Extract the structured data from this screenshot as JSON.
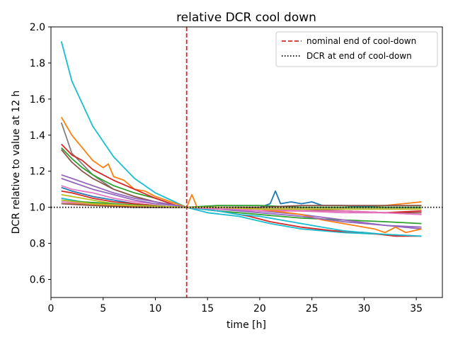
{
  "chart_data": {
    "type": "line",
    "title": "relative DCR cool down",
    "xlabel": "time [h]",
    "ylabel": "DCR relative to value at 12 h",
    "xlim": [
      0,
      37.5
    ],
    "ylim": [
      0.5,
      2.0
    ],
    "xticks": [
      0,
      5,
      10,
      15,
      20,
      25,
      30,
      35
    ],
    "yticks": [
      0.6,
      0.8,
      1.0,
      1.2,
      1.4,
      1.6,
      1.8,
      2.0
    ],
    "xtick_labels": [
      "0",
      "5",
      "10",
      "15",
      "20",
      "25",
      "30",
      "35"
    ],
    "ytick_labels": [
      "0.6",
      "0.8",
      "1.0",
      "1.2",
      "1.4",
      "1.6",
      "1.8",
      "2.0"
    ],
    "grid": false,
    "legend_position": "top-right",
    "reference_lines": [
      {
        "name": "nominal end of cool-down",
        "orientation": "vertical",
        "value": 13.0,
        "color": "#d62728",
        "style": "dashed"
      },
      {
        "name": "DCR at end of cool-down",
        "orientation": "horizontal",
        "value": 1.0,
        "color": "#000000",
        "style": "dotted"
      }
    ],
    "series": [
      {
        "name": "s1",
        "color": "#17becf",
        "points": [
          [
            1,
            1.92
          ],
          [
            2,
            1.7
          ],
          [
            4,
            1.45
          ],
          [
            6,
            1.28
          ],
          [
            8,
            1.16
          ],
          [
            10,
            1.08
          ],
          [
            11.5,
            1.04
          ],
          [
            13,
            1.0
          ],
          [
            15,
            0.97
          ],
          [
            18,
            0.95
          ],
          [
            21,
            0.91
          ],
          [
            24,
            0.88
          ],
          [
            28,
            0.86
          ],
          [
            32,
            0.85
          ],
          [
            35.5,
            0.84
          ]
        ]
      },
      {
        "name": "s2",
        "color": "#ff7f0e",
        "points": [
          [
            1,
            1.5
          ],
          [
            2,
            1.4
          ],
          [
            3,
            1.33
          ],
          [
            4,
            1.26
          ],
          [
            5,
            1.22
          ],
          [
            5.5,
            1.24
          ],
          [
            6,
            1.17
          ],
          [
            7,
            1.15
          ],
          [
            8,
            1.1
          ],
          [
            9,
            1.09
          ],
          [
            10,
            1.06
          ],
          [
            11,
            1.04
          ],
          [
            12,
            1.02
          ],
          [
            13,
            1.0
          ],
          [
            13.5,
            1.07
          ],
          [
            14,
            1.0
          ],
          [
            16,
            1.0
          ],
          [
            20,
            1.0
          ],
          [
            24,
            1.0
          ],
          [
            28,
            1.0
          ],
          [
            32,
            1.01
          ],
          [
            35.5,
            1.03
          ]
        ]
      },
      {
        "name": "s3",
        "color": "#7f7f7f",
        "points": [
          [
            1,
            1.47
          ],
          [
            2,
            1.3
          ],
          [
            4,
            1.18
          ],
          [
            6,
            1.1
          ],
          [
            8,
            1.06
          ],
          [
            10,
            1.03
          ],
          [
            12,
            1.01
          ],
          [
            13,
            1.0
          ],
          [
            16,
            0.99
          ],
          [
            20,
            0.99
          ],
          [
            24,
            0.99
          ],
          [
            28,
            0.99
          ],
          [
            32,
            0.99
          ],
          [
            35.5,
            0.99
          ]
        ]
      },
      {
        "name": "s4",
        "color": "#2ca02c",
        "points": [
          [
            1,
            1.33
          ],
          [
            2,
            1.27
          ],
          [
            3,
            1.22
          ],
          [
            4,
            1.18
          ],
          [
            5,
            1.15
          ],
          [
            6,
            1.12
          ],
          [
            8,
            1.08
          ],
          [
            10,
            1.05
          ],
          [
            12,
            1.01
          ],
          [
            13,
            1.0
          ],
          [
            16,
            0.98
          ],
          [
            20,
            0.96
          ],
          [
            24,
            0.94
          ],
          [
            28,
            0.93
          ],
          [
            32,
            0.92
          ],
          [
            35.5,
            0.91
          ]
        ]
      },
      {
        "name": "s5",
        "color": "#d62728",
        "points": [
          [
            1,
            1.35
          ],
          [
            2,
            1.29
          ],
          [
            3,
            1.26
          ],
          [
            4,
            1.21
          ],
          [
            6,
            1.15
          ],
          [
            8,
            1.1
          ],
          [
            10,
            1.05
          ],
          [
            12,
            1.01
          ],
          [
            13,
            1.0
          ],
          [
            16,
            0.98
          ],
          [
            19,
            0.95
          ],
          [
            21,
            0.92
          ],
          [
            24,
            0.89
          ],
          [
            27,
            0.87
          ],
          [
            30,
            0.86
          ],
          [
            33,
            0.84
          ],
          [
            35.5,
            0.84
          ]
        ]
      },
      {
        "name": "s6",
        "color": "#8c564b",
        "points": [
          [
            1,
            1.32
          ],
          [
            2,
            1.25
          ],
          [
            3,
            1.2
          ],
          [
            4,
            1.16
          ],
          [
            6,
            1.1
          ],
          [
            8,
            1.06
          ],
          [
            10,
            1.03
          ],
          [
            12,
            1.01
          ],
          [
            13,
            1.0
          ],
          [
            16,
            1.0
          ],
          [
            20,
            0.99
          ],
          [
            24,
            0.99
          ],
          [
            28,
            0.98
          ],
          [
            32,
            0.97
          ],
          [
            35.5,
            0.97
          ]
        ]
      },
      {
        "name": "s7",
        "color": "#9467bd",
        "points": [
          [
            1,
            1.18
          ],
          [
            2,
            1.16
          ],
          [
            4,
            1.12
          ],
          [
            6,
            1.08
          ],
          [
            8,
            1.05
          ],
          [
            10,
            1.03
          ],
          [
            12,
            1.01
          ],
          [
            13,
            1.0
          ],
          [
            16,
            0.99
          ],
          [
            20,
            0.98
          ],
          [
            24,
            0.96
          ],
          [
            28,
            0.93
          ],
          [
            32,
            0.9
          ],
          [
            35.5,
            0.88
          ]
        ]
      },
      {
        "name": "s8",
        "color": "#e377c2",
        "points": [
          [
            1,
            1.12
          ],
          [
            2,
            1.1
          ],
          [
            4,
            1.08
          ],
          [
            6,
            1.05
          ],
          [
            8,
            1.03
          ],
          [
            10,
            1.02
          ],
          [
            12,
            1.01
          ],
          [
            13,
            1.0
          ],
          [
            16,
            0.99
          ],
          [
            20,
            0.98
          ],
          [
            24,
            0.98
          ],
          [
            28,
            0.97
          ],
          [
            32,
            0.97
          ],
          [
            35.5,
            0.96
          ]
        ]
      },
      {
        "name": "s9",
        "color": "#1f77b4",
        "points": [
          [
            1,
            1.11
          ],
          [
            2,
            1.09
          ],
          [
            4,
            1.06
          ],
          [
            6,
            1.04
          ],
          [
            8,
            1.02
          ],
          [
            10,
            1.01
          ],
          [
            12,
            1.0
          ],
          [
            13,
            1.0
          ],
          [
            16,
            1.0
          ],
          [
            20,
            1.0
          ],
          [
            21,
            1.02
          ],
          [
            21.5,
            1.09
          ],
          [
            22,
            1.02
          ],
          [
            23,
            1.03
          ],
          [
            24,
            1.02
          ],
          [
            25,
            1.03
          ],
          [
            26,
            1.01
          ],
          [
            28,
            1.01
          ],
          [
            32,
            1.0
          ],
          [
            35.5,
            1.0
          ]
        ]
      },
      {
        "name": "s10",
        "color": "#bcbd22",
        "points": [
          [
            1,
            1.07
          ],
          [
            2,
            1.06
          ],
          [
            4,
            1.04
          ],
          [
            6,
            1.02
          ],
          [
            8,
            1.01
          ],
          [
            10,
            1.0
          ],
          [
            12,
            1.0
          ],
          [
            13,
            1.0
          ],
          [
            16,
            1.0
          ],
          [
            20,
            1.0
          ],
          [
            24,
            1.0
          ],
          [
            28,
            1.0
          ],
          [
            32,
            1.0
          ],
          [
            35.5,
            1.0
          ]
        ]
      },
      {
        "name": "s11",
        "color": "#d62728",
        "points": [
          [
            1,
            1.09
          ],
          [
            2,
            1.08
          ],
          [
            4,
            1.05
          ],
          [
            6,
            1.03
          ],
          [
            8,
            1.02
          ],
          [
            10,
            1.01
          ],
          [
            12,
            1.0
          ],
          [
            13,
            1.0
          ],
          [
            16,
            1.0
          ],
          [
            20,
            0.99
          ],
          [
            24,
            0.98
          ],
          [
            28,
            0.98
          ],
          [
            32,
            0.97
          ],
          [
            35.5,
            0.98
          ]
        ]
      },
      {
        "name": "s12",
        "color": "#17becf",
        "points": [
          [
            1,
            1.05
          ],
          [
            3,
            1.03
          ],
          [
            6,
            1.01
          ],
          [
            9,
            1.0
          ],
          [
            13,
            1.0
          ],
          [
            16,
            0.98
          ],
          [
            18,
            0.96
          ],
          [
            20,
            0.95
          ],
          [
            22,
            0.93
          ],
          [
            24,
            0.91
          ],
          [
            26,
            0.89
          ],
          [
            28,
            0.87
          ],
          [
            30,
            0.86
          ],
          [
            32,
            0.85
          ],
          [
            35.5,
            0.84
          ]
        ]
      },
      {
        "name": "s13",
        "color": "#2ca02c",
        "points": [
          [
            1,
            1.04
          ],
          [
            3,
            1.03
          ],
          [
            6,
            1.02
          ],
          [
            9,
            1.01
          ],
          [
            13,
            1.0
          ],
          [
            16,
            1.01
          ],
          [
            20,
            1.01
          ],
          [
            24,
            1.0
          ],
          [
            28,
            1.0
          ],
          [
            32,
            1.0
          ],
          [
            35.5,
            1.0
          ]
        ]
      },
      {
        "name": "s14",
        "color": "#ff7f0e",
        "points": [
          [
            1,
            1.02
          ],
          [
            3,
            1.02
          ],
          [
            6,
            1.01
          ],
          [
            9,
            1.0
          ],
          [
            13,
            1.0
          ],
          [
            16,
            1.0
          ],
          [
            20,
            0.99
          ],
          [
            24,
            0.96
          ],
          [
            26,
            0.93
          ],
          [
            28,
            0.91
          ],
          [
            30,
            0.89
          ],
          [
            31,
            0.88
          ],
          [
            32,
            0.86
          ],
          [
            33,
            0.89
          ],
          [
            34,
            0.86
          ],
          [
            35.5,
            0.88
          ]
        ]
      },
      {
        "name": "s15",
        "color": "#9467bd",
        "points": [
          [
            1,
            1.16
          ],
          [
            2,
            1.14
          ],
          [
            4,
            1.1
          ],
          [
            6,
            1.07
          ],
          [
            8,
            1.04
          ],
          [
            10,
            1.02
          ],
          [
            12,
            1.01
          ],
          [
            13,
            1.0
          ],
          [
            16,
            0.99
          ],
          [
            20,
            0.97
          ],
          [
            24,
            0.95
          ],
          [
            28,
            0.92
          ],
          [
            32,
            0.9
          ],
          [
            35.5,
            0.89
          ]
        ]
      },
      {
        "name": "s16",
        "color": "#8c564b",
        "points": [
          [
            1,
            1.02
          ],
          [
            4,
            1.01
          ],
          [
            8,
            1.0
          ],
          [
            13,
            1.0
          ],
          [
            16,
            1.0
          ],
          [
            20,
            1.0
          ],
          [
            24,
            1.01
          ],
          [
            28,
            1.01
          ],
          [
            32,
            1.01
          ],
          [
            35.5,
            1.01
          ]
        ]
      },
      {
        "name": "s17",
        "color": "#e377c2",
        "points": [
          [
            1,
            1.03
          ],
          [
            4,
            1.02
          ],
          [
            8,
            1.01
          ],
          [
            13,
            1.0
          ],
          [
            16,
            0.99
          ],
          [
            20,
            0.99
          ],
          [
            24,
            0.98
          ],
          [
            28,
            0.98
          ],
          [
            32,
            0.97
          ],
          [
            35.5,
            0.96
          ]
        ]
      },
      {
        "name": "s18",
        "color": "#bcbd22",
        "points": [
          [
            1,
            1.04
          ],
          [
            4,
            1.02
          ],
          [
            8,
            1.01
          ],
          [
            13,
            1.0
          ],
          [
            16,
            1.0
          ],
          [
            20,
            0.99
          ],
          [
            24,
            0.99
          ],
          [
            28,
            0.99
          ],
          [
            32,
            0.99
          ],
          [
            35.5,
            0.99
          ]
        ]
      }
    ]
  }
}
